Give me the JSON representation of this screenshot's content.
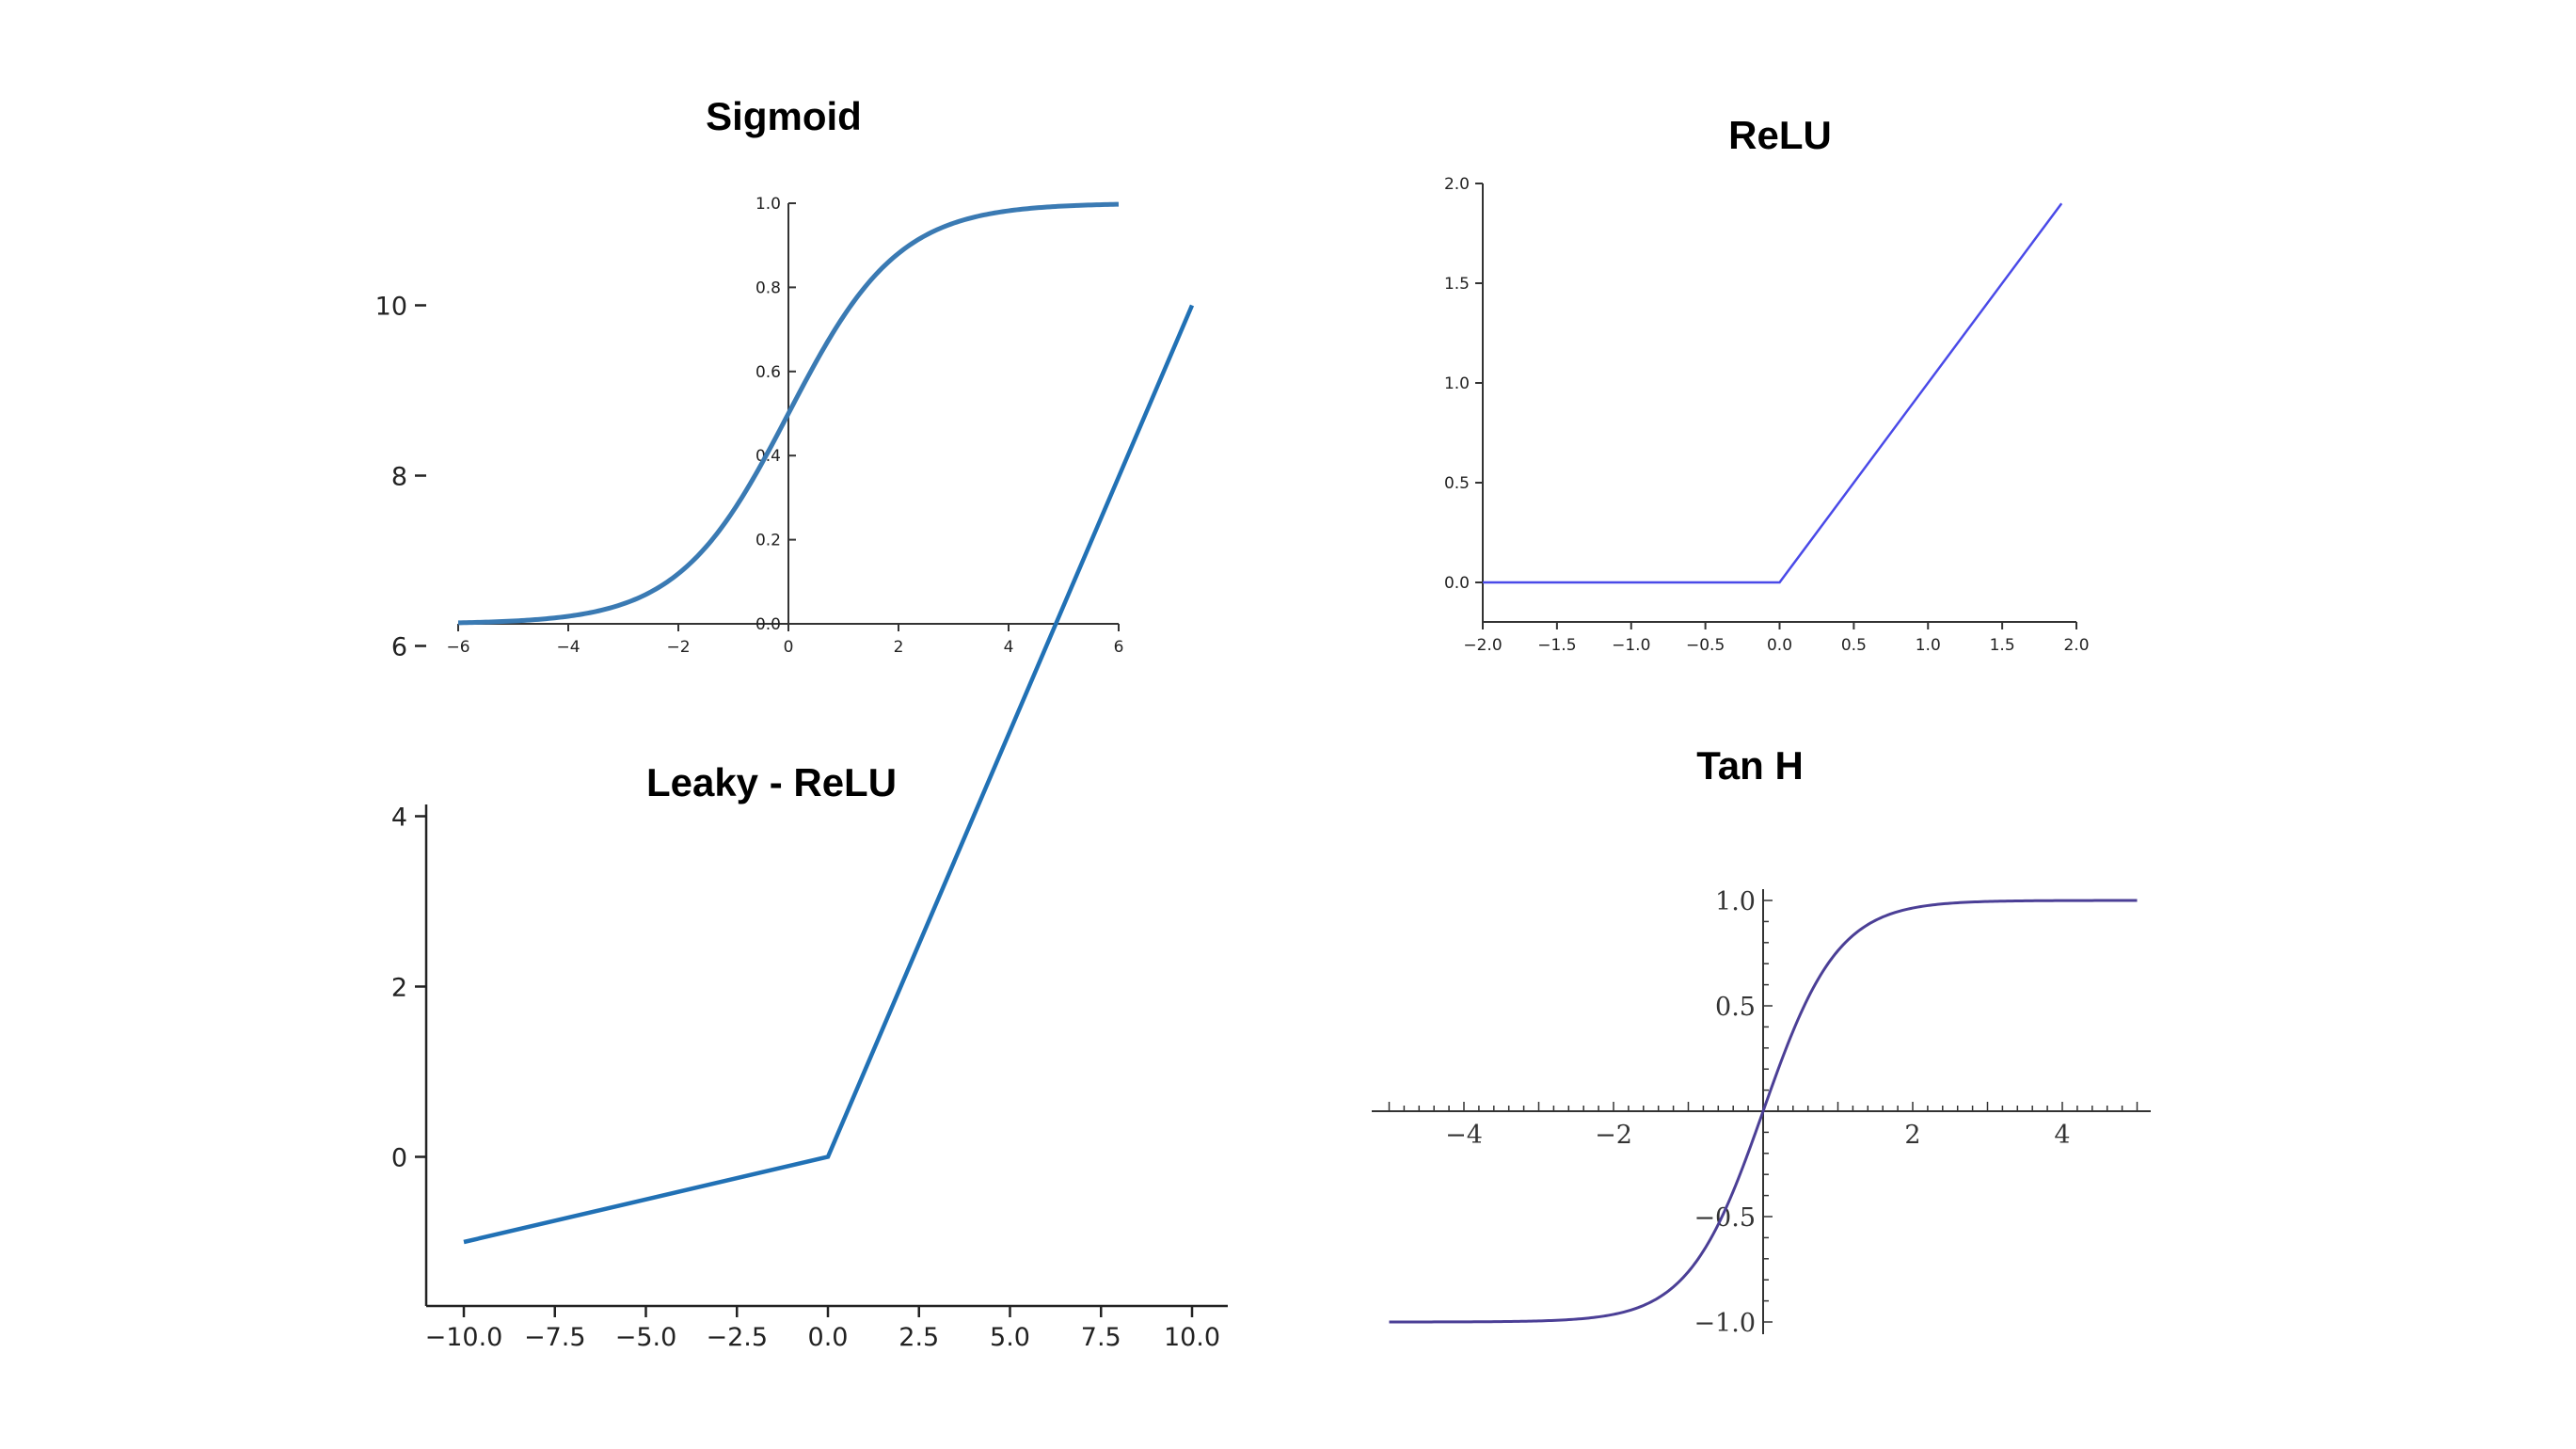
{
  "charts": [
    {
      "id": "sigmoid",
      "title": "Sigmoid",
      "color": "#3a7ab3",
      "function": "sigmoid",
      "xlim": [
        -6,
        6
      ],
      "ylim": [
        0,
        1
      ],
      "xticks": [
        "−6",
        "−4",
        "−2",
        "0",
        "2",
        "4",
        "6"
      ],
      "yticks": [
        "0.0",
        "0.2",
        "0.4",
        "0.6",
        "0.8",
        "1.0"
      ]
    },
    {
      "id": "relu",
      "title": "ReLU",
      "color": "#4a4ae8",
      "function": "relu",
      "xlim": [
        -2,
        2
      ],
      "ylim": [
        0,
        2
      ],
      "xticks": [
        "−2.0",
        "−1.5",
        "−1.0",
        "−0.5",
        "0.0",
        "0.5",
        "1.0",
        "1.5",
        "2.0"
      ],
      "yticks": [
        "0.0",
        "0.5",
        "1.0",
        "1.5",
        "2.0"
      ]
    },
    {
      "id": "leaky-relu",
      "title": "Leaky - ReLU",
      "color": "#2171b5",
      "function": "leaky_relu",
      "xlim": [
        -10,
        10
      ],
      "ylim": [
        -1,
        10
      ],
      "xticks": [
        "−10.0",
        "−7.5",
        "−5.0",
        "−2.5",
        "0.0",
        "2.5",
        "5.0",
        "7.5",
        "10.0"
      ],
      "yticks": [
        "0",
        "2",
        "4",
        "6",
        "8",
        "10"
      ]
    },
    {
      "id": "tanh",
      "title": "Tan H",
      "color": "#4b3f96",
      "function": "tanh",
      "xlim": [
        -5,
        5
      ],
      "ylim": [
        -1,
        1
      ],
      "xticks": [
        "−4",
        "−2",
        "2",
        "4"
      ],
      "yticks": [
        "1.0",
        "0.5",
        "−0.5",
        "−1.0"
      ]
    }
  ],
  "chart_data": [
    {
      "type": "line",
      "title": "Sigmoid",
      "x": [
        -6,
        -5,
        -4,
        -3,
        -2,
        -1,
        0,
        1,
        2,
        3,
        4,
        5,
        6
      ],
      "y": [
        0.0025,
        0.0067,
        0.018,
        0.047,
        0.119,
        0.269,
        0.5,
        0.731,
        0.881,
        0.953,
        0.982,
        0.993,
        0.9975
      ],
      "xlim": [
        -6,
        6
      ],
      "ylim": [
        0,
        1
      ],
      "grid": false
    },
    {
      "type": "line",
      "title": "ReLU",
      "x": [
        -2,
        0,
        1.9
      ],
      "y": [
        0,
        0,
        1.9
      ],
      "xlim": [
        -2,
        2
      ],
      "ylim": [
        0,
        2
      ],
      "grid": false
    },
    {
      "type": "line",
      "title": "Leaky - ReLU",
      "x": [
        -10,
        0,
        10
      ],
      "y": [
        -1,
        0,
        10
      ],
      "xlim": [
        -10,
        10
      ],
      "ylim": [
        -1,
        10
      ],
      "grid": false
    },
    {
      "type": "line",
      "title": "Tan H",
      "x": [
        -5,
        -4,
        -3,
        -2,
        -1,
        0,
        1,
        2,
        3,
        4,
        5
      ],
      "y": [
        -0.9999,
        -0.9993,
        -0.995,
        -0.964,
        -0.762,
        0,
        0.762,
        0.964,
        0.995,
        0.9993,
        0.9999
      ],
      "xlim": [
        -5,
        5
      ],
      "ylim": [
        -1,
        1
      ],
      "grid": false
    }
  ]
}
